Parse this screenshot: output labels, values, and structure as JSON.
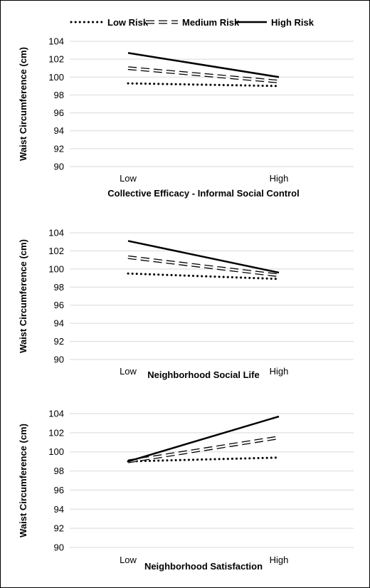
{
  "legend": {
    "position": "top",
    "items": [
      {
        "name": "Low Risk",
        "style": "dotted"
      },
      {
        "name": "Medium Risk",
        "style": "dashed-hollow"
      },
      {
        "name": "High Risk",
        "style": "solid"
      }
    ]
  },
  "chart_data": [
    {
      "type": "line",
      "categories": [
        "Low",
        "High"
      ],
      "xlabel": "Collective Efficacy - Informal Social Control",
      "ylabel": "Waist Circumference (cm)",
      "ylim": [
        90,
        104
      ],
      "yticks": [
        90,
        92,
        94,
        96,
        98,
        100,
        102,
        104
      ],
      "grid": true,
      "series": [
        {
          "name": "Low Risk",
          "values": [
            99.3,
            99.0
          ]
        },
        {
          "name": "Medium Risk",
          "values": [
            101.0,
            99.5
          ]
        },
        {
          "name": "High Risk",
          "values": [
            102.7,
            100.0
          ]
        }
      ]
    },
    {
      "type": "line",
      "categories": [
        "Low",
        "High"
      ],
      "xlabel": "Neighborhood Social Life",
      "ylabel": "Waist Circumference (cm)",
      "ylim": [
        90,
        104
      ],
      "yticks": [
        90,
        92,
        94,
        96,
        98,
        100,
        102,
        104
      ],
      "grid": true,
      "series": [
        {
          "name": "Low Risk",
          "values": [
            99.5,
            98.9
          ]
        },
        {
          "name": "Medium Risk",
          "values": [
            101.3,
            99.3
          ]
        },
        {
          "name": "High Risk",
          "values": [
            103.1,
            99.6
          ]
        }
      ]
    },
    {
      "type": "line",
      "categories": [
        "Low",
        "High"
      ],
      "xlabel": "Neighborhood Satisfaction",
      "ylabel": "Waist Circumference (cm)",
      "ylim": [
        90,
        104
      ],
      "yticks": [
        90,
        92,
        94,
        96,
        98,
        100,
        102,
        104
      ],
      "grid": true,
      "series": [
        {
          "name": "Low Risk",
          "values": [
            99.0,
            99.4
          ]
        },
        {
          "name": "Medium Risk",
          "values": [
            99.0,
            101.5
          ]
        },
        {
          "name": "High Risk",
          "values": [
            99.0,
            103.7
          ]
        }
      ]
    }
  ]
}
